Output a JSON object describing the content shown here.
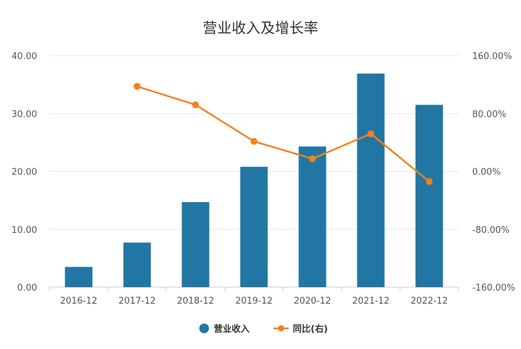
{
  "chart_data": {
    "type": "bar+line",
    "title": "营业收入及增长率",
    "categories": [
      "2016-12",
      "2017-12",
      "2018-12",
      "2019-12",
      "2020-12",
      "2021-12",
      "2022-12"
    ],
    "series": [
      {
        "name": "营业收入",
        "type": "bar",
        "axis": "left",
        "color": "#2276a3",
        "values": [
          3.5,
          7.7,
          14.7,
          20.8,
          24.3,
          36.9,
          31.5
        ]
      },
      {
        "name": "同比(右)",
        "type": "line",
        "axis": "right",
        "color": "#f0821f",
        "values": [
          null,
          117.5,
          92.0,
          41.5,
          17.5,
          52.0,
          -14.0
        ]
      }
    ],
    "left_axis": {
      "min": 0,
      "max": 40,
      "ticks": [
        0,
        10,
        20,
        30,
        40
      ],
      "tick_labels": [
        "0.00",
        "10.00",
        "20.00",
        "30.00",
        "40.00"
      ]
    },
    "right_axis": {
      "min": -160,
      "max": 160,
      "ticks": [
        -160,
        -80,
        0,
        80,
        160
      ],
      "tick_labels": [
        "-160.00%",
        "-80.00%",
        "0.00%",
        "80.00%",
        "160.00%"
      ]
    },
    "grid": true,
    "legend": "bottom-center"
  }
}
